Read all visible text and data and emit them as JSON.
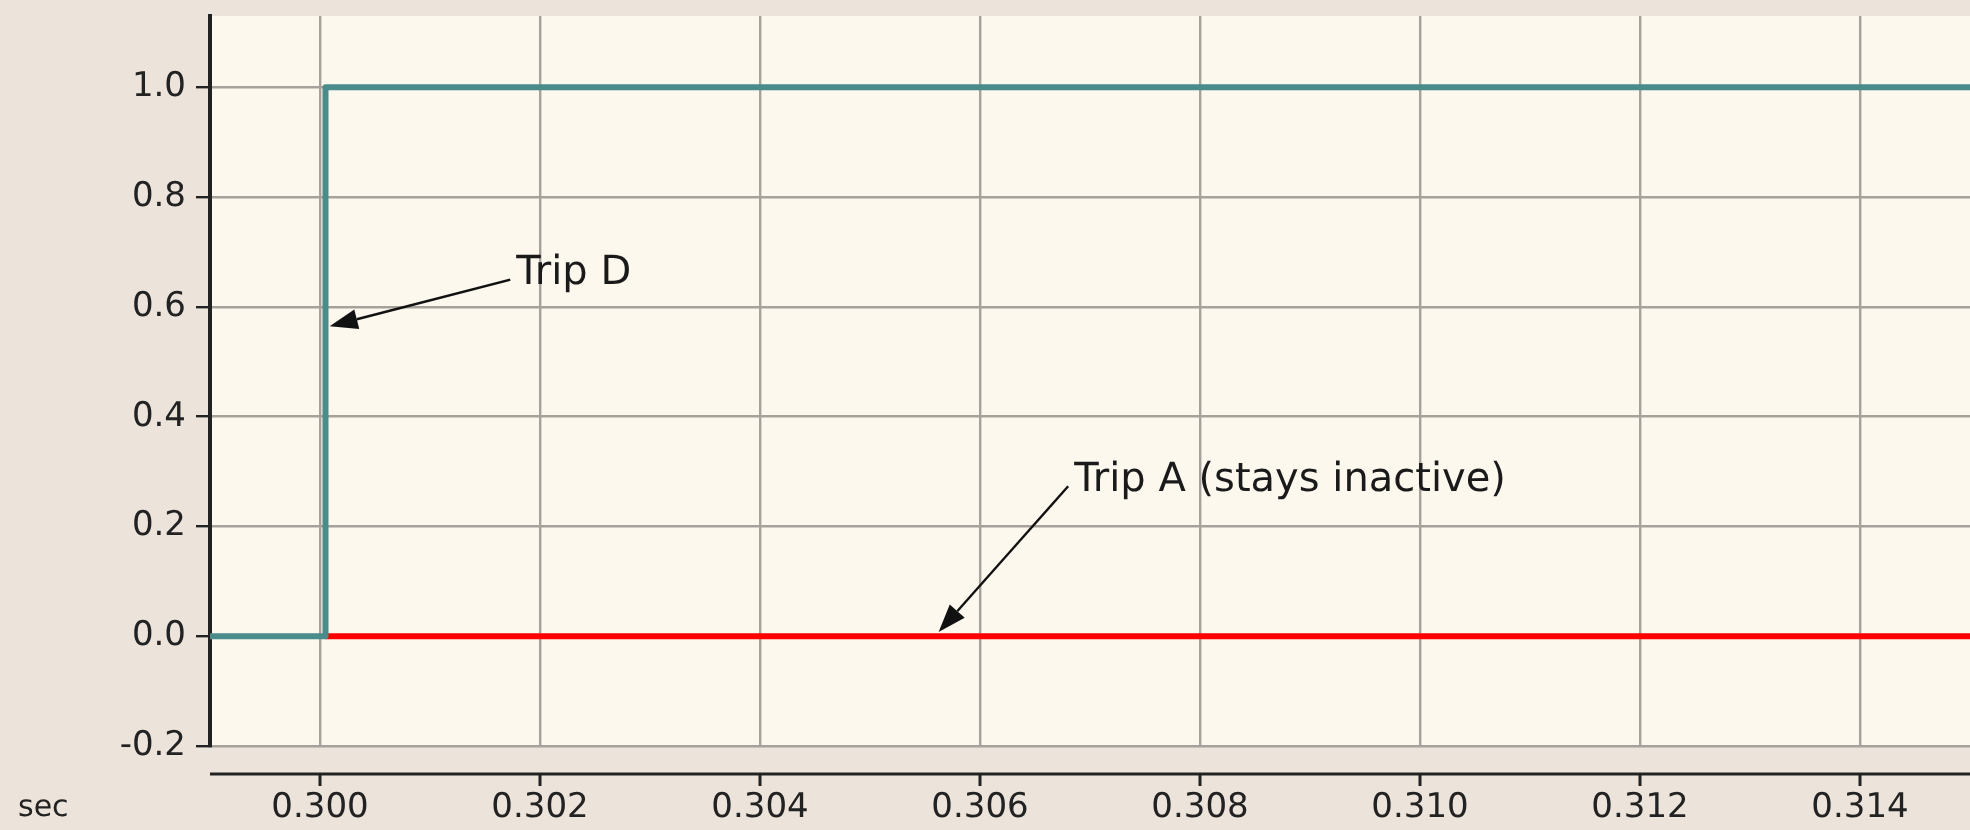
{
  "chart_data": {
    "type": "step",
    "xlabel": "sec",
    "xlim": [
      0.299,
      0.315
    ],
    "xticks": [
      {
        "value": 0.3,
        "label": "0.300"
      },
      {
        "value": 0.302,
        "label": "0.302"
      },
      {
        "value": 0.304,
        "label": "0.304"
      },
      {
        "value": 0.306,
        "label": "0.306"
      },
      {
        "value": 0.308,
        "label": "0.308"
      },
      {
        "value": 0.31,
        "label": "0.310"
      },
      {
        "value": 0.312,
        "label": "0.312"
      },
      {
        "value": 0.314,
        "label": "0.314"
      }
    ],
    "ylim": [
      -0.2,
      1.13
    ],
    "yticks": [
      {
        "value": -0.2,
        "label": "-0.2"
      },
      {
        "value": 0,
        "label": "0.0"
      },
      {
        "value": 0.2,
        "label": "0.2"
      },
      {
        "value": 0.4,
        "label": "0.4"
      },
      {
        "value": 0.6,
        "label": "0.6"
      },
      {
        "value": 0.8,
        "label": "0.8"
      },
      {
        "value": 1,
        "label": "1.0"
      }
    ],
    "grid": true,
    "line_style": "solid",
    "series": [
      {
        "color": "#4a8b8b",
        "x": [
          0.299,
          0.30005,
          0.315
        ],
        "values": [
          0,
          1,
          1
        ]
      },
      {
        "color": "#ff0000",
        "x": [
          0.30005,
          0.315
        ],
        "values": [
          0,
          0
        ]
      }
    ],
    "annotations": [
      "Trip D",
      "Trip A (stays inactive)"
    ]
  }
}
